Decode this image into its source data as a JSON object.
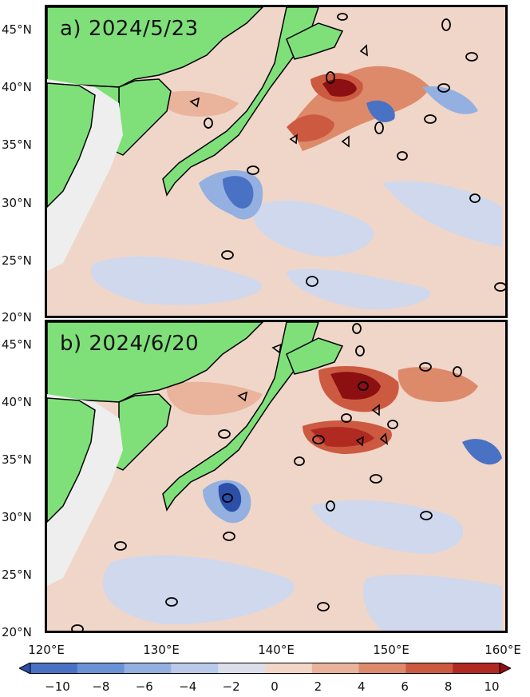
{
  "panels": [
    {
      "id": "a",
      "label": "a) 2024/5/23"
    },
    {
      "id": "b",
      "label": "b) 2024/6/20"
    }
  ],
  "map": {
    "lon_range": [
      120,
      160
    ],
    "lat_range": [
      20,
      47
    ],
    "lat_ticks": [
      "45°N",
      "40°N",
      "35°N",
      "30°N",
      "25°N",
      "20°N"
    ],
    "lon_ticks": [
      "120°E",
      "130°E",
      "140°E",
      "150°E",
      "160°E"
    ],
    "land_color": "#7fe07a",
    "shade_color": "#eeeeee"
  },
  "colorbar": {
    "ticks": [
      "−10",
      "−8",
      "−6",
      "−4",
      "−2",
      "0",
      "2",
      "4",
      "6",
      "8",
      "10"
    ],
    "range": [
      -10,
      10
    ],
    "colors": [
      "#2c4fa8",
      "#4a72c4",
      "#6b92d6",
      "#93b0e0",
      "#b9c9e8",
      "#dcdfea",
      "#f2d6c8",
      "#eab39b",
      "#dd8a6b",
      "#cc5a40",
      "#b02a22",
      "#8c0f12"
    ]
  }
}
